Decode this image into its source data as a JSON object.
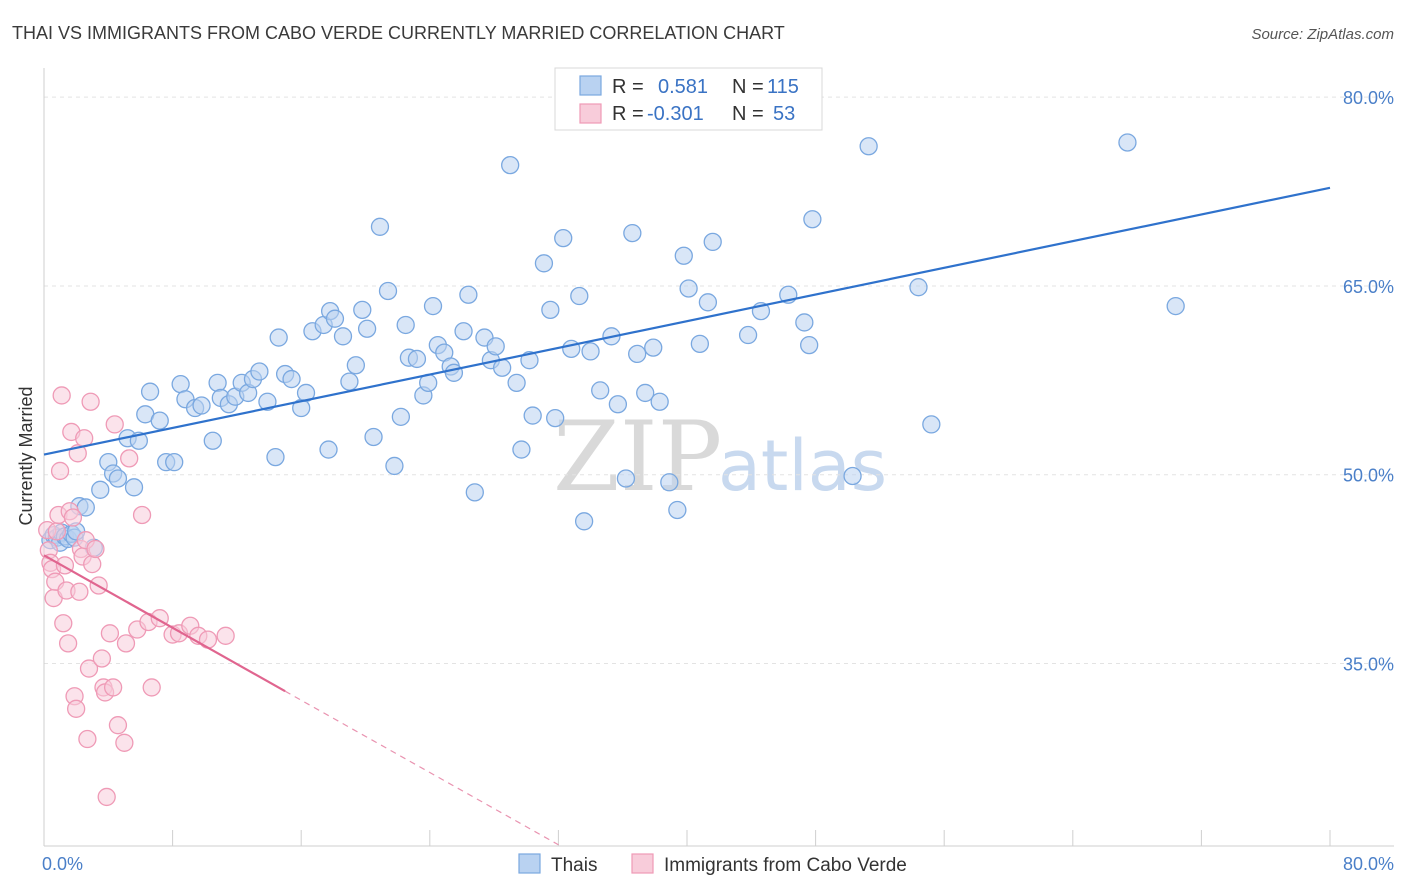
{
  "chart_data": {
    "type": "scatter",
    "title": "THAI VS IMMIGRANTS FROM CABO VERDE CURRENTLY MARRIED CORRELATION CHART",
    "source": "Source: ZipAtlas.com",
    "ylabel": "Currently Married",
    "xlim": [
      0,
      80
    ],
    "ylim": [
      20.5,
      82
    ],
    "x_tick_labels": [
      "0.0%",
      "80.0%"
    ],
    "y_ticks": [
      {
        "value": 80,
        "label": "80.0%"
      },
      {
        "value": 65,
        "label": "65.0%"
      },
      {
        "value": 50,
        "label": "50.0%"
      },
      {
        "value": 35,
        "label": "35.0%"
      }
    ],
    "watermark": {
      "zip": "ZIP",
      "atlas": "atlas"
    },
    "legend": {
      "rows": [
        {
          "r_label": "R =",
          "r_value": "0.581",
          "n_label": "N =",
          "n_value": "115"
        },
        {
          "r_label": "R =",
          "r_value": "-0.301",
          "n_label": "N =",
          "n_value": "53"
        }
      ]
    },
    "series": [
      {
        "name": "Thais",
        "color": "#7aa8e0",
        "fill": "#b9d2f1",
        "line_color": "#2f72cc",
        "trend": {
          "x0": 0,
          "y0": 51.6,
          "x1": 80,
          "y1": 72.8
        },
        "points": [
          [
            0.4,
            44.8
          ],
          [
            0.6,
            45.2
          ],
          [
            0.8,
            45.0
          ],
          [
            1.0,
            44.6
          ],
          [
            1.1,
            45.4
          ],
          [
            1.3,
            45.1
          ],
          [
            1.5,
            44.9
          ],
          [
            1.7,
            45.3
          ],
          [
            1.9,
            45.0
          ],
          [
            2.0,
            45.5
          ],
          [
            2.2,
            47.5
          ],
          [
            2.6,
            47.4
          ],
          [
            3.1,
            44.2
          ],
          [
            3.5,
            48.8
          ],
          [
            4.0,
            51.0
          ],
          [
            4.3,
            50.1
          ],
          [
            4.6,
            49.7
          ],
          [
            5.2,
            52.9
          ],
          [
            5.6,
            49.0
          ],
          [
            5.9,
            52.7
          ],
          [
            6.3,
            54.8
          ],
          [
            6.6,
            56.6
          ],
          [
            7.2,
            54.3
          ],
          [
            7.6,
            51.0
          ],
          [
            8.1,
            51.0
          ],
          [
            8.5,
            57.2
          ],
          [
            8.8,
            56.0
          ],
          [
            9.4,
            55.3
          ],
          [
            9.8,
            55.5
          ],
          [
            10.5,
            52.7
          ],
          [
            10.8,
            57.3
          ],
          [
            11.0,
            56.1
          ],
          [
            11.5,
            55.6
          ],
          [
            11.9,
            56.2
          ],
          [
            12.3,
            57.3
          ],
          [
            12.7,
            56.5
          ],
          [
            13.0,
            57.6
          ],
          [
            13.4,
            58.2
          ],
          [
            13.9,
            55.8
          ],
          [
            14.4,
            51.4
          ],
          [
            14.6,
            60.9
          ],
          [
            15.0,
            58.0
          ],
          [
            15.4,
            57.6
          ],
          [
            16.0,
            55.3
          ],
          [
            16.3,
            56.5
          ],
          [
            16.7,
            61.4
          ],
          [
            17.4,
            61.9
          ],
          [
            17.7,
            52.0
          ],
          [
            17.8,
            63.0
          ],
          [
            18.1,
            62.4
          ],
          [
            18.6,
            61.0
          ],
          [
            19.0,
            57.4
          ],
          [
            19.4,
            58.7
          ],
          [
            19.8,
            63.1
          ],
          [
            20.1,
            61.6
          ],
          [
            20.5,
            53.0
          ],
          [
            20.9,
            69.7
          ],
          [
            21.4,
            64.6
          ],
          [
            21.8,
            50.7
          ],
          [
            22.2,
            54.6
          ],
          [
            22.5,
            61.9
          ],
          [
            22.7,
            59.3
          ],
          [
            23.2,
            59.2
          ],
          [
            23.6,
            56.3
          ],
          [
            23.9,
            57.3
          ],
          [
            24.2,
            63.4
          ],
          [
            24.5,
            60.3
          ],
          [
            24.9,
            59.7
          ],
          [
            25.3,
            58.6
          ],
          [
            25.5,
            58.1
          ],
          [
            26.1,
            61.4
          ],
          [
            26.4,
            64.3
          ],
          [
            26.8,
            48.6
          ],
          [
            27.4,
            60.9
          ],
          [
            27.8,
            59.1
          ],
          [
            28.1,
            60.2
          ],
          [
            28.5,
            58.5
          ],
          [
            29.0,
            74.6
          ],
          [
            29.4,
            57.3
          ],
          [
            29.7,
            52.0
          ],
          [
            30.2,
            59.1
          ],
          [
            30.4,
            54.7
          ],
          [
            31.1,
            66.8
          ],
          [
            31.5,
            63.1
          ],
          [
            31.8,
            54.5
          ],
          [
            32.3,
            68.8
          ],
          [
            32.8,
            60.0
          ],
          [
            33.3,
            64.2
          ],
          [
            33.6,
            46.3
          ],
          [
            34.0,
            59.8
          ],
          [
            34.6,
            56.7
          ],
          [
            35.3,
            61.0
          ],
          [
            35.7,
            55.6
          ],
          [
            36.2,
            49.7
          ],
          [
            36.6,
            69.2
          ],
          [
            36.9,
            59.6
          ],
          [
            37.4,
            56.5
          ],
          [
            37.9,
            60.1
          ],
          [
            38.3,
            55.8
          ],
          [
            38.9,
            49.4
          ],
          [
            39.4,
            47.2
          ],
          [
            39.8,
            67.4
          ],
          [
            40.1,
            64.8
          ],
          [
            40.8,
            60.4
          ],
          [
            41.3,
            63.7
          ],
          [
            41.6,
            68.5
          ],
          [
            43.8,
            61.1
          ],
          [
            44.6,
            63.0
          ],
          [
            46.3,
            64.3
          ],
          [
            47.3,
            62.1
          ],
          [
            47.6,
            60.3
          ],
          [
            47.8,
            70.3
          ],
          [
            50.3,
            49.9
          ],
          [
            51.3,
            76.1
          ],
          [
            54.4,
            64.9
          ],
          [
            55.2,
            54.0
          ],
          [
            67.4,
            76.4
          ],
          [
            70.4,
            63.4
          ]
        ]
      },
      {
        "name": "Immigrants from Cabo Verde",
        "color": "#ef9ab6",
        "fill": "#f8ccda",
        "line_color": "#e0658f",
        "trend": {
          "x0": 0,
          "y0": 43.6,
          "x1": 15.0,
          "y1": 32.8
        },
        "trend_dashed": {
          "x0": 15.0,
          "y0": 32.8,
          "x1": 32.0,
          "y1": 20.6
        },
        "points": [
          [
            0.2,
            45.6
          ],
          [
            0.3,
            44.0
          ],
          [
            0.4,
            43.0
          ],
          [
            0.5,
            42.5
          ],
          [
            0.6,
            40.2
          ],
          [
            0.7,
            41.5
          ],
          [
            0.8,
            45.5
          ],
          [
            0.9,
            46.8
          ],
          [
            1.0,
            50.3
          ],
          [
            1.1,
            56.3
          ],
          [
            1.2,
            38.2
          ],
          [
            1.3,
            42.8
          ],
          [
            1.4,
            40.8
          ],
          [
            1.5,
            36.6
          ],
          [
            1.6,
            47.1
          ],
          [
            1.7,
            53.4
          ],
          [
            1.8,
            46.6
          ],
          [
            1.9,
            32.4
          ],
          [
            2.0,
            31.4
          ],
          [
            2.1,
            51.7
          ],
          [
            2.2,
            40.7
          ],
          [
            2.3,
            44.1
          ],
          [
            2.4,
            43.5
          ],
          [
            2.5,
            52.9
          ],
          [
            2.6,
            44.8
          ],
          [
            2.7,
            29.0
          ],
          [
            2.8,
            34.6
          ],
          [
            2.9,
            55.8
          ],
          [
            3.0,
            42.9
          ],
          [
            3.2,
            44.1
          ],
          [
            3.4,
            41.2
          ],
          [
            3.6,
            35.4
          ],
          [
            3.7,
            33.1
          ],
          [
            3.8,
            32.7
          ],
          [
            3.9,
            24.4
          ],
          [
            4.1,
            37.4
          ],
          [
            4.3,
            33.1
          ],
          [
            4.4,
            54.0
          ],
          [
            4.6,
            30.1
          ],
          [
            5.0,
            28.7
          ],
          [
            5.1,
            36.6
          ],
          [
            5.3,
            51.3
          ],
          [
            5.8,
            37.7
          ],
          [
            6.1,
            46.8
          ],
          [
            6.5,
            38.3
          ],
          [
            6.7,
            33.1
          ],
          [
            7.2,
            38.6
          ],
          [
            8.0,
            37.3
          ],
          [
            8.4,
            37.4
          ],
          [
            9.1,
            38.0
          ],
          [
            9.6,
            37.2
          ],
          [
            10.2,
            36.9
          ],
          [
            11.3,
            37.2
          ]
        ]
      }
    ]
  }
}
